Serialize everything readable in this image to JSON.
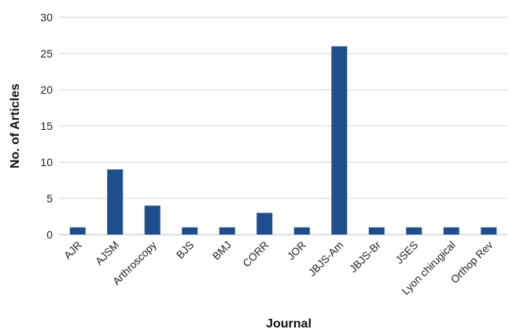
{
  "chart_data": {
    "type": "bar",
    "categories": [
      "AJR",
      "AJSM",
      "Arthroscopy",
      "BJS",
      "BMJ",
      "CORR",
      "JOR",
      "JBJS-Am",
      "JBJS-Br",
      "JSES",
      "Lyon chirugical",
      "Orthop Rev"
    ],
    "values": [
      1,
      9,
      4,
      1,
      1,
      3,
      1,
      26,
      1,
      1,
      1,
      1
    ],
    "title": "",
    "xlabel": "Journal",
    "ylabel": "No. of  Articles",
    "ylim": [
      0,
      30
    ],
    "yticks": [
      0,
      5,
      10,
      15,
      20,
      25,
      30
    ],
    "grid": true,
    "legend": "none",
    "bar_color": "#1f4e8c"
  }
}
